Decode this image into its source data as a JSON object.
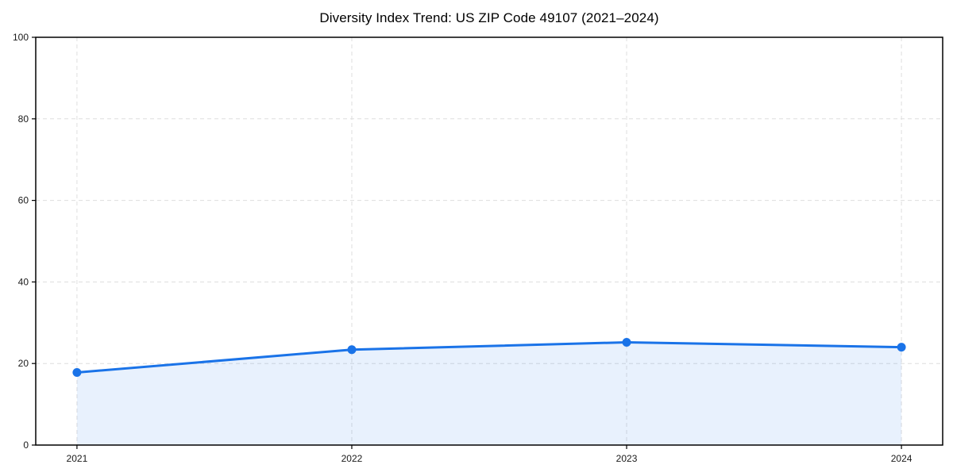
{
  "chart_data": {
    "type": "line",
    "title": "Diversity Index Trend: US ZIP Code 49107 (2021–2024)",
    "x": [
      2021,
      2022,
      2023,
      2024
    ],
    "series": [
      {
        "name": "Diversity Index",
        "values": [
          17.8,
          23.4,
          25.2,
          24.0
        ]
      }
    ],
    "xticks": [
      "2021",
      "2022",
      "2023",
      "2024"
    ],
    "yticks": [
      0,
      20,
      40,
      60,
      80,
      100
    ],
    "ylim": [
      0,
      100
    ],
    "xlabel": "",
    "ylabel": "",
    "grid": true,
    "grid_style": "dashed",
    "area_fill": true,
    "legend": "none",
    "colors": {
      "line": "#1a73e8",
      "marker": "#1a73e8",
      "area": "rgba(26,115,232,0.10)",
      "grid": "#dedede",
      "spine": "#000000",
      "tick_label": "#1a1a1a",
      "title": "#000000"
    }
  }
}
